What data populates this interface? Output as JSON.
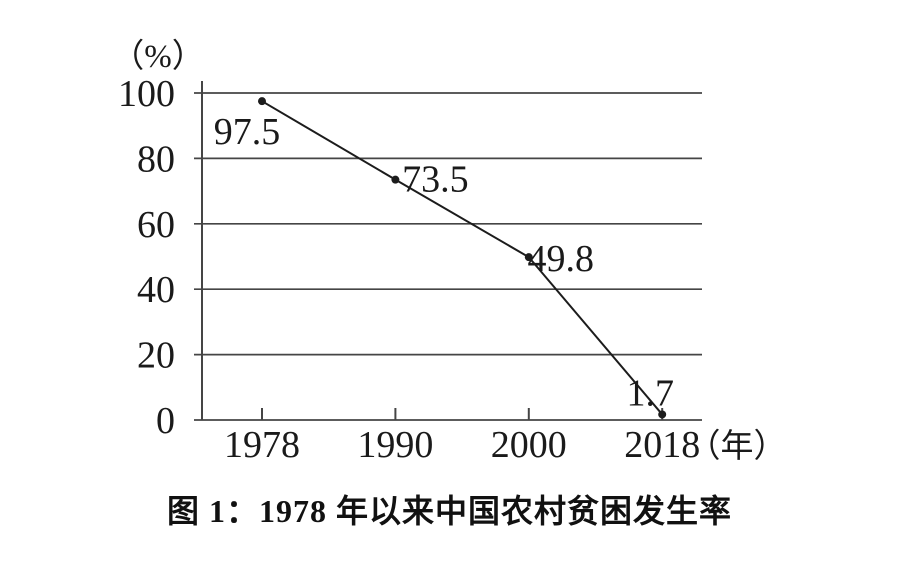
{
  "chart_data": {
    "type": "line",
    "x": [
      1978,
      1990,
      2000,
      2018
    ],
    "x_tick_labels": [
      "1978",
      "1990",
      "2000",
      "2018"
    ],
    "values": [
      97.5,
      73.5,
      49.8,
      1.7
    ],
    "point_labels": [
      "97.5",
      "73.5",
      "49.8",
      "1.7"
    ],
    "title": "图 1：1978 年以来中国农村贫困发生率",
    "xlabel": "（年）",
    "ylabel": "（%）",
    "ylim": [
      0,
      100
    ],
    "yticks": [
      0,
      20,
      40,
      60,
      80,
      100
    ],
    "grid": true,
    "legend": false,
    "line_color": "#1c1c1c",
    "point_color": "#1c1c1c",
    "grid_color": "#454545",
    "text_color": "#1a1a1a",
    "background": "#ffffff"
  }
}
